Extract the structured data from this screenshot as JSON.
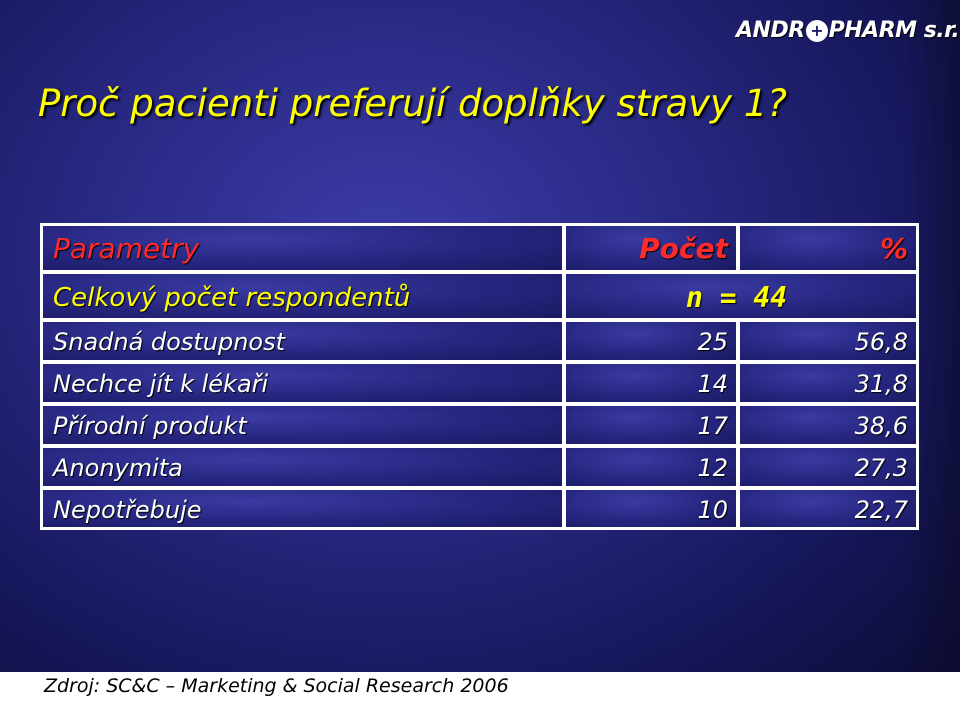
{
  "logo": {
    "text_left": "ANDR",
    "text_right": "PHARM s.r.o."
  },
  "title": "Proč pacienti preferují doplňky stravy 1?",
  "table": {
    "header": {
      "parameter": "Parametry",
      "count": "Počet",
      "percent": "%"
    },
    "total": {
      "label": "Celkový počet respondentů",
      "value": "n = 44"
    },
    "rows": [
      {
        "label": "Snadná dostupnost",
        "count": "25",
        "percent": "56,8"
      },
      {
        "label": "Nechce jít k  lékaři",
        "count": "14",
        "percent": "31,8"
      },
      {
        "label": "Přírodní produkt",
        "count": "17",
        "percent": "38,6"
      },
      {
        "label": "Anonymita",
        "count": "12",
        "percent": "27,3"
      },
      {
        "label": "Nepotřebuje",
        "count": "10",
        "percent": "22,7"
      }
    ]
  },
  "source": "Zdroj: SC&C – Marketing & Social  Research 2006",
  "colors": {
    "title": "#ffff00",
    "header": "#ff2a2a",
    "text": "#ffffff",
    "background": "#2a2a86"
  }
}
